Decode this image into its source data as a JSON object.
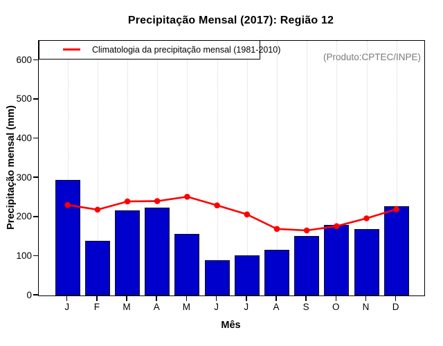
{
  "annotation": "(Produto:CPTEC/INPE)",
  "legend": {
    "label": "Climatologia da precipitação mensal (1981-2010)"
  },
  "colors": {
    "bar": "#0000cd",
    "bar_border": "#111111",
    "line": "#ff0000",
    "grid": "#d4d4d4",
    "annotation_text": "#7a7a7a",
    "axis": "#000000"
  },
  "chart_data": {
    "type": "bar",
    "title": "Precipitação Mensal (2017): Região 12",
    "xlabel": "Mês",
    "ylabel": "Precipitação mensal (mm)",
    "categories": [
      "J",
      "F",
      "M",
      "A",
      "M",
      "J",
      "J",
      "A",
      "S",
      "O",
      "N",
      "D"
    ],
    "series": [
      {
        "name": "Precipitação Mensal (2017)",
        "type": "bar",
        "values": [
          295,
          140,
          217,
          225,
          157,
          90,
          102,
          116,
          152,
          181,
          169,
          227
        ]
      },
      {
        "name": "Climatologia da precipitação mensal (1981-2010)",
        "type": "line",
        "values": [
          231,
          219,
          240,
          241,
          252,
          230,
          207,
          170,
          166,
          177,
          197,
          220
        ]
      }
    ],
    "ylim": [
      0,
      650
    ],
    "yticks": [
      0,
      100,
      200,
      300,
      400,
      500,
      600
    ],
    "grid": "vertical-dotted",
    "legend_position": "top-left"
  }
}
